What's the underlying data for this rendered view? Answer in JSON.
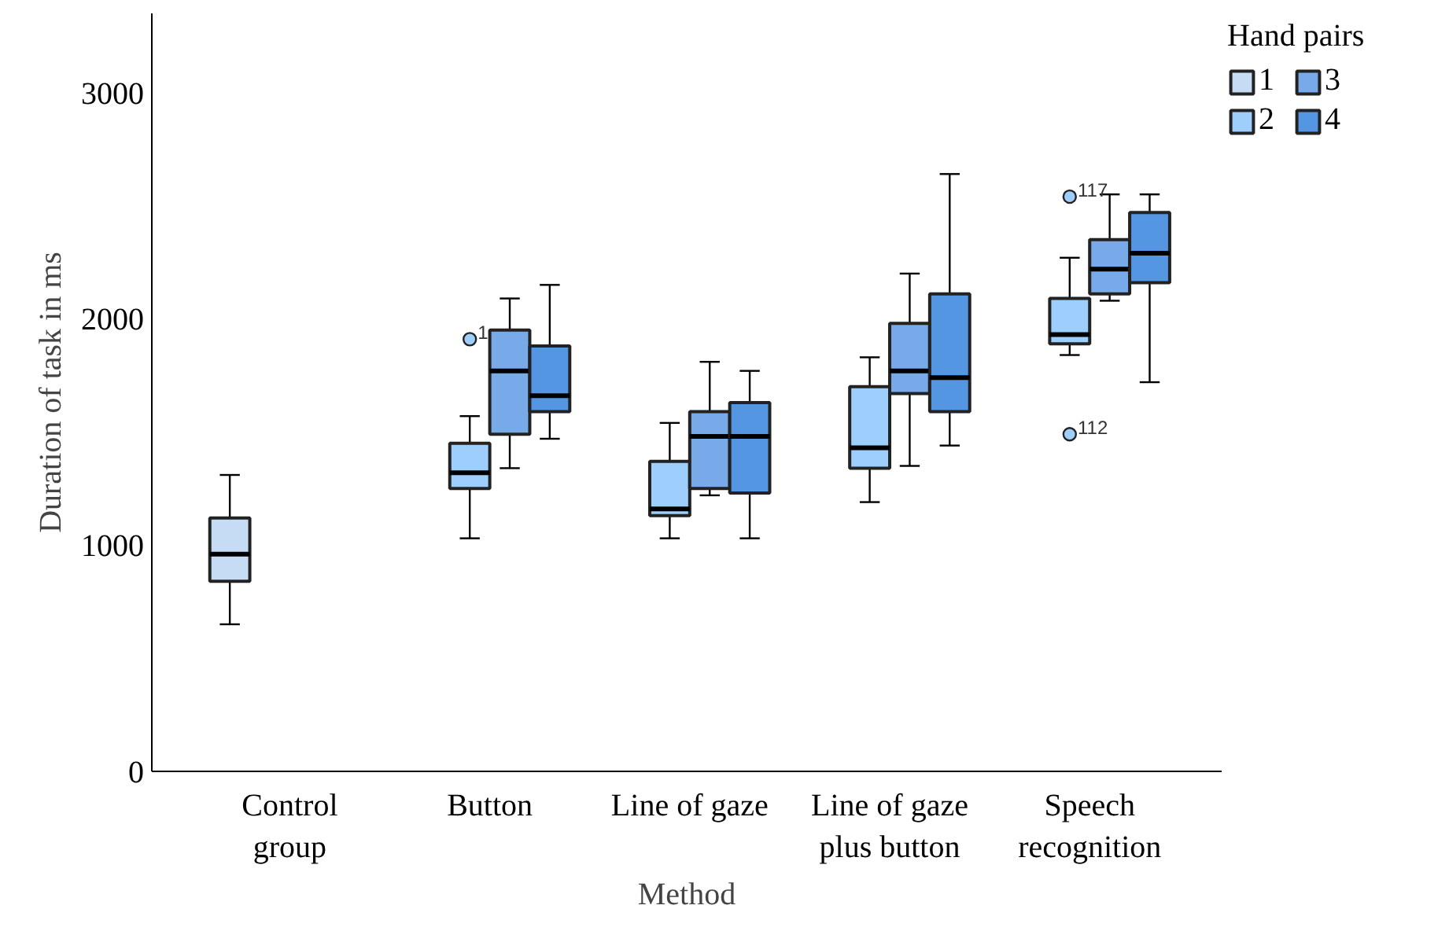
{
  "chart_data": {
    "type": "box",
    "xlabel": "Method",
    "ylabel": "Duration of task in ms",
    "legend_title": "Hand pairs",
    "categories": [
      "Control\ngroup",
      "Button",
      "Line of gaze",
      "Line of gaze\nplus button",
      "Speech\nrecognition"
    ],
    "ylim": [
      0,
      3350
    ],
    "yticks": [
      0,
      1000,
      2000,
      3000
    ],
    "grid": false,
    "legend": "top right",
    "series": [
      {
        "name": "1",
        "color": "#c6dcf5",
        "boxes": [
          {
            "low": 650,
            "q1": 840,
            "median": 960,
            "q3": 1120,
            "high": 1310
          },
          null,
          null,
          null,
          null
        ]
      },
      {
        "name": "2",
        "color": "#9ecffc",
        "boxes": [
          null,
          {
            "low": 1030,
            "q1": 1250,
            "median": 1320,
            "q3": 1450,
            "high": 1570,
            "outliers": [
              1910
            ]
          },
          {
            "low": 1030,
            "q1": 1130,
            "median": 1160,
            "q3": 1370,
            "high": 1540
          },
          {
            "low": 1190,
            "q1": 1340,
            "median": 1430,
            "q3": 1700,
            "high": 1830
          },
          {
            "low": 1840,
            "q1": 1890,
            "median": 1930,
            "q3": 2090,
            "high": 2270,
            "outliers": [
              2540,
              1490
            ]
          }
        ]
      },
      {
        "name": "3",
        "color": "#78aaea",
        "boxes": [
          null,
          {
            "low": 1340,
            "q1": 1490,
            "median": 1770,
            "q3": 1950,
            "high": 2090
          },
          {
            "low": 1220,
            "q1": 1250,
            "median": 1480,
            "q3": 1590,
            "high": 1810
          },
          {
            "low": 1350,
            "q1": 1670,
            "median": 1770,
            "q3": 1980,
            "high": 2200
          },
          {
            "low": 2080,
            "q1": 2110,
            "median": 2220,
            "q3": 2350,
            "high": 2550
          }
        ]
      },
      {
        "name": "4",
        "color": "#5596e3",
        "boxes": [
          null,
          {
            "low": 1470,
            "q1": 1590,
            "median": 1660,
            "q3": 1880,
            "high": 2150
          },
          {
            "low": 1030,
            "q1": 1230,
            "median": 1480,
            "q3": 1630,
            "high": 1770
          },
          {
            "low": 1440,
            "q1": 1590,
            "median": 1740,
            "q3": 2110,
            "high": 2640
          },
          {
            "low": 1720,
            "q1": 2160,
            "median": 2290,
            "q3": 2470,
            "high": 2550
          }
        ]
      }
    ],
    "annotations": [
      "1",
      "117",
      "112"
    ]
  }
}
